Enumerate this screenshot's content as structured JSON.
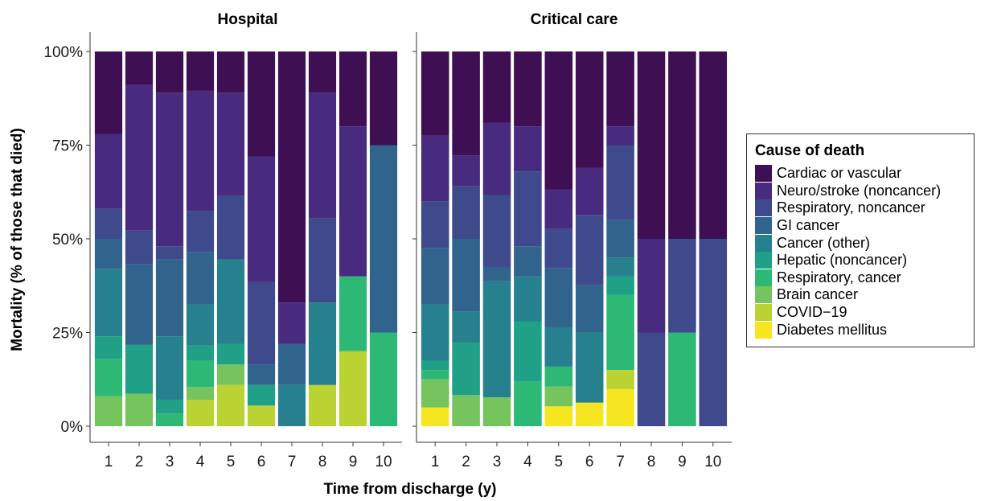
{
  "chart_data": {
    "type": "bar",
    "stacked": true,
    "ylabel": "Mortality (% of those that died)",
    "xlabel": "Time from discharge (y)",
    "ylim": [
      0,
      100
    ],
    "y_ticks": [
      "0%",
      "25%",
      "50%",
      "75%",
      "100%"
    ],
    "y_tick_values": [
      0,
      25,
      50,
      75,
      100
    ],
    "categories": [
      "1",
      "2",
      "3",
      "4",
      "5",
      "6",
      "7",
      "8",
      "9",
      "10"
    ],
    "legend": {
      "title": "Cause of death",
      "placement": "right",
      "entries": [
        {
          "name": "Cardiac or vascular",
          "color": "#3F0F53"
        },
        {
          "name": "Neuro/stroke (noncancer)",
          "color": "#482A7E"
        },
        {
          "name": "Respiratory, noncancer",
          "color": "#3E4A8B"
        },
        {
          "name": "GI cancer",
          "color": "#31648D"
        },
        {
          "name": "Cancer (other)",
          "color": "#26808E"
        },
        {
          "name": "Hepatic (noncancer)",
          "color": "#1FA087"
        },
        {
          "name": "Respiratory, cancer",
          "color": "#2DB876"
        },
        {
          "name": "Brain cancer",
          "color": "#75C45E"
        },
        {
          "name": "COVID−19",
          "color": "#BBD233"
        },
        {
          "name": "Diabetes mellitus",
          "color": "#F6E621"
        }
      ]
    },
    "panels": [
      {
        "title": "Hospital",
        "series": [
          {
            "name": "Diabetes mellitus",
            "values": [
              0,
              0,
              0,
              0,
              0,
              0,
              0,
              0,
              0,
              0
            ]
          },
          {
            "name": "COVID−19",
            "values": [
              0,
              0,
              0,
              7,
              11,
              5.5,
              0,
              11,
              20,
              0
            ]
          },
          {
            "name": "Brain cancer",
            "values": [
              8,
              8.7,
              0,
              3.5,
              5.5,
              0,
              0,
              0,
              0,
              0
            ]
          },
          {
            "name": "Respiratory, cancer",
            "values": [
              10,
              0,
              3.4,
              7,
              0,
              0,
              0,
              0,
              20,
              25
            ]
          },
          {
            "name": "Hepatic (noncancer)",
            "values": [
              6,
              13,
              3.6,
              4,
              5.5,
              5.5,
              0,
              0,
              0,
              0
            ]
          },
          {
            "name": "Cancer (other)",
            "values": [
              18,
              0,
              17,
              11,
              22.5,
              0,
              11,
              22,
              0,
              0
            ]
          },
          {
            "name": "GI cancer",
            "values": [
              8,
              21.5,
              20.5,
              14,
              0,
              5.5,
              11,
              0,
              0,
              50
            ]
          },
          {
            "name": "Respiratory, noncancer",
            "values": [
              8,
              9,
              3.5,
              11,
              17,
              22,
              0,
              22.5,
              0,
              0
            ]
          },
          {
            "name": "Neuro/stroke (noncancer)",
            "values": [
              20,
              39,
              41,
              32,
              27.5,
              33.5,
              11,
              33.5,
              40,
              0
            ]
          },
          {
            "name": "Cardiac or vascular",
            "values": [
              22,
              8.8,
              11,
              10.5,
              11,
              28,
              67,
              11,
              20,
              25
            ]
          }
        ]
      },
      {
        "title": "Critical care",
        "series": [
          {
            "name": "Diabetes mellitus",
            "values": [
              5,
              0,
              0,
              0,
              5.3,
              6.3,
              9.9,
              0,
              0,
              0
            ]
          },
          {
            "name": "COVID−19",
            "values": [
              0,
              0,
              0,
              0,
              0,
              0,
              5.1,
              0,
              0,
              0
            ]
          },
          {
            "name": "Brain cancer",
            "values": [
              7.5,
              8.3,
              7.7,
              0,
              5.3,
              0,
              0,
              0,
              0,
              0
            ]
          },
          {
            "name": "Respiratory, cancer",
            "values": [
              2.5,
              0,
              0,
              12,
              5.3,
              0,
              20,
              0,
              25,
              0
            ]
          },
          {
            "name": "Hepatic (noncancer)",
            "values": [
              2.5,
              14,
              0,
              16,
              0,
              0,
              5,
              0,
              0,
              0
            ]
          },
          {
            "name": "Cancer (other)",
            "values": [
              15,
              8.3,
              31,
              12,
              10.5,
              18.8,
              5,
              0,
              0,
              0
            ]
          },
          {
            "name": "GI cancer",
            "values": [
              15,
              19.4,
              3.8,
              8,
              15.8,
              12.5,
              10,
              0,
              0,
              0
            ]
          },
          {
            "name": "Respiratory, noncancer",
            "values": [
              12.5,
              14,
              19.2,
              20,
              10.5,
              18.8,
              20,
              25,
              25,
              50
            ]
          },
          {
            "name": "Neuro/stroke (noncancer)",
            "values": [
              17.5,
              8.3,
              19.3,
              12,
              10.5,
              12.5,
              5,
              25,
              0,
              0
            ]
          },
          {
            "name": "Cardiac or vascular",
            "values": [
              22.5,
              27.7,
              19,
              20,
              36.8,
              31.1,
              20,
              50,
              50,
              50
            ]
          }
        ]
      }
    ]
  }
}
